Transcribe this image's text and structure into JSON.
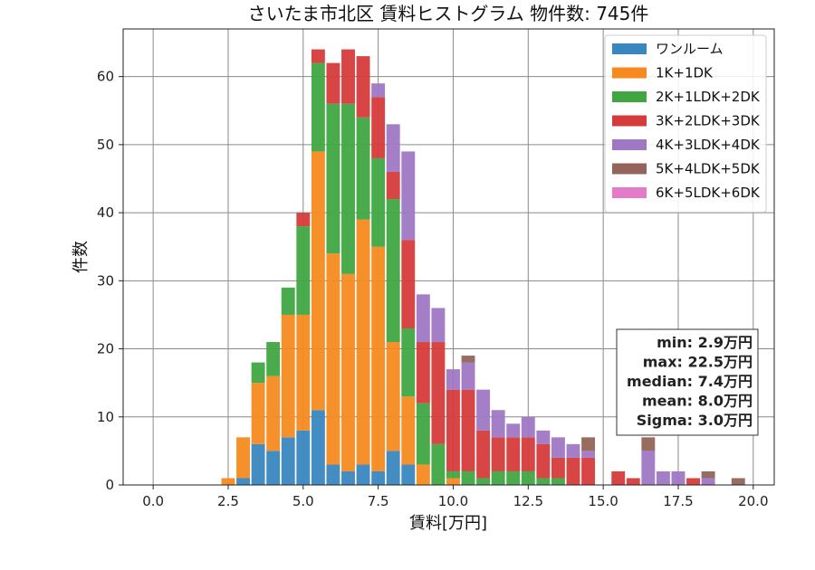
{
  "chart_data": {
    "type": "bar",
    "stacked": true,
    "title": "さいたま市北区 賃料ヒストグラム 物件数: 745件",
    "xlabel": "賃料[万円]",
    "ylabel": "件数",
    "xlim": [
      -1.0,
      20.7
    ],
    "ylim": [
      0,
      67
    ],
    "xticks": [
      0.0,
      2.5,
      5.0,
      7.5,
      10.0,
      12.5,
      15.0,
      17.5,
      20.0
    ],
    "xtick_labels": [
      "0.0",
      "2.5",
      "5.0",
      "7.5",
      "10.0",
      "12.5",
      "15.0",
      "17.5",
      "20.0"
    ],
    "yticks": [
      0,
      10,
      20,
      30,
      40,
      50,
      60
    ],
    "ytick_labels": [
      "0",
      "10",
      "20",
      "30",
      "40",
      "50",
      "60"
    ],
    "grid": true,
    "legend_position": "top-right",
    "bin_width": 0.5,
    "bins": [
      2.5,
      3.0,
      3.5,
      4.0,
      4.5,
      5.0,
      5.5,
      6.0,
      6.5,
      7.0,
      7.5,
      8.0,
      8.5,
      9.0,
      9.5,
      10.0,
      10.5,
      11.0,
      11.5,
      12.0,
      12.5,
      13.0,
      13.5,
      14.0,
      14.5,
      15.0,
      15.5,
      16.0,
      16.5,
      17.0,
      17.5,
      18.0,
      18.5,
      19.0,
      19.5,
      20.0
    ],
    "series": [
      {
        "name": "ワンルーム",
        "color": "#3a87c0",
        "values": [
          0,
          1,
          6,
          5,
          7,
          8,
          11,
          3,
          2,
          3,
          2,
          5,
          3,
          0,
          0,
          0,
          0,
          0,
          0,
          0,
          0,
          0,
          0,
          0,
          0,
          0,
          0,
          0,
          0,
          0,
          0,
          0,
          0,
          0,
          0,
          0
        ]
      },
      {
        "name": "1K+1DK",
        "color": "#f68a1f",
        "values": [
          1,
          6,
          9,
          11,
          18,
          17,
          38,
          31,
          29,
          36,
          33,
          16,
          10,
          3,
          0,
          1,
          0,
          0,
          0,
          0,
          0,
          0,
          0,
          0,
          0,
          0,
          0,
          0,
          0,
          0,
          0,
          0,
          0,
          0,
          0,
          0
        ]
      },
      {
        "name": "2K+1LDK+2DK",
        "color": "#3fa642",
        "values": [
          0,
          0,
          3,
          5,
          4,
          13,
          13,
          22,
          25,
          15,
          13,
          21,
          10,
          9,
          6,
          1,
          2,
          1,
          2,
          2,
          2,
          1,
          1,
          0,
          0,
          0,
          0,
          0,
          0,
          0,
          0,
          0,
          0,
          0,
          0,
          0
        ]
      },
      {
        "name": "3K+2LDK+3DK",
        "color": "#d63b3b",
        "values": [
          0,
          0,
          0,
          0,
          0,
          2,
          2,
          6,
          8,
          9,
          9,
          4,
          13,
          9,
          15,
          12,
          12,
          7,
          5,
          5,
          5,
          5,
          3,
          4,
          4,
          0,
          2,
          1,
          0,
          0,
          0,
          1,
          0,
          0,
          0,
          0
        ]
      },
      {
        "name": "4K+3LDK+4DK",
        "color": "#9f78c4",
        "values": [
          0,
          0,
          0,
          0,
          0,
          0,
          0,
          0,
          0,
          0,
          2,
          7,
          13,
          7,
          5,
          3,
          4,
          6,
          4,
          2,
          3,
          2,
          3,
          2,
          1,
          0,
          0,
          0,
          5,
          2,
          2,
          0,
          1,
          0,
          0,
          0
        ]
      },
      {
        "name": "5K+4LDK+5DK",
        "color": "#94645a",
        "values": [
          0,
          0,
          0,
          0,
          0,
          0,
          0,
          0,
          0,
          0,
          0,
          0,
          0,
          0,
          0,
          0,
          1,
          0,
          0,
          0,
          0,
          0,
          0,
          0,
          2,
          0,
          0,
          0,
          2,
          0,
          0,
          0,
          1,
          0,
          1,
          0
        ]
      },
      {
        "name": "6K+5LDK+6DK",
        "color": "#e47bc8",
        "values": [
          0,
          0,
          0,
          0,
          0,
          0,
          0,
          0,
          0,
          0,
          0,
          0,
          0,
          0,
          0,
          0,
          0,
          0,
          0,
          0,
          0,
          0,
          0,
          0,
          0,
          0,
          0,
          0,
          0,
          0,
          0,
          0,
          0,
          0,
          0,
          0
        ]
      }
    ],
    "stats": [
      "min: 2.9万円",
      "max: 22.5万円",
      "median: 7.4万円",
      "mean: 8.0万円",
      "Sigma: 3.0万円"
    ]
  }
}
